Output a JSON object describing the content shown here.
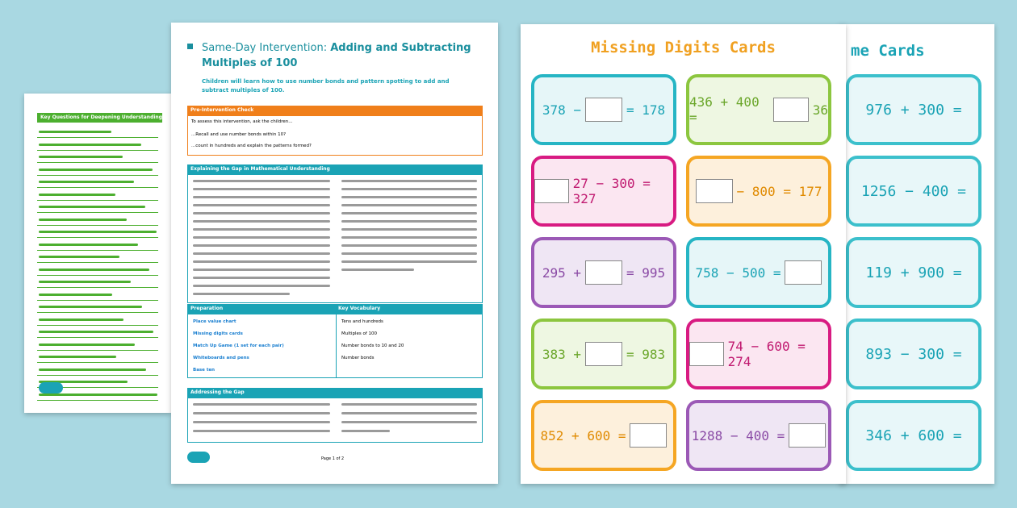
{
  "left_sheet": {
    "title": "Key Questions for Deepening Understanding"
  },
  "main_sheet": {
    "title_light": "Same-Day Intervention:",
    "title_bold": "Adding and Subtracting Multiples of 100",
    "intro": "Children will learn how to use number bonds and pattern spotting to add and subtract multiples of 100.",
    "pre_check": {
      "header": "Pre-Intervention Check",
      "lead": "To assess this intervention, ask the children...",
      "items": [
        "...Recall and use number bonds within 10?",
        "...count in hundreds and explain the patterns formed?"
      ]
    },
    "explaining": {
      "header": "Explaining the Gap in Mathematical Understanding"
    },
    "preparation": {
      "header": "Preparation",
      "items": [
        "Place value chart",
        "Missing digits cards",
        "Match Up Game (1 set for each pair)",
        "Whiteboards and pens",
        "Base ten"
      ]
    },
    "vocabulary": {
      "header": "Key Vocabulary",
      "items": [
        "Tens and hundreds",
        "Multiples of 100",
        "Number bonds to 10 and 20",
        "Number bonds"
      ]
    },
    "addressing": {
      "header": "Addressing the Gap"
    },
    "footer": "Page 1 of 2"
  },
  "digits_sheet": {
    "title": "Missing Digits Cards",
    "cards": [
      {
        "before": "378 −",
        "after": "= 178"
      },
      {
        "before": "436 + 400 =",
        "after": "36"
      },
      {
        "after": "27 − 300 = 327"
      },
      {
        "after": "− 800 = 177"
      },
      {
        "before": "295 +",
        "after": "= 995"
      },
      {
        "before": "758 − 500 ="
      },
      {
        "before": "383 +",
        "after": "= 983"
      },
      {
        "after": "74 − 600 = 274"
      },
      {
        "before": "852 + 600 ="
      },
      {
        "before": "1288 − 400 ="
      }
    ]
  },
  "game_sheet": {
    "title": "me Cards",
    "cards": [
      "976 + 300 =",
      "1256 − 400 =",
      "119 + 900 =",
      "893 − 300 =",
      "346 + 600 ="
    ]
  }
}
